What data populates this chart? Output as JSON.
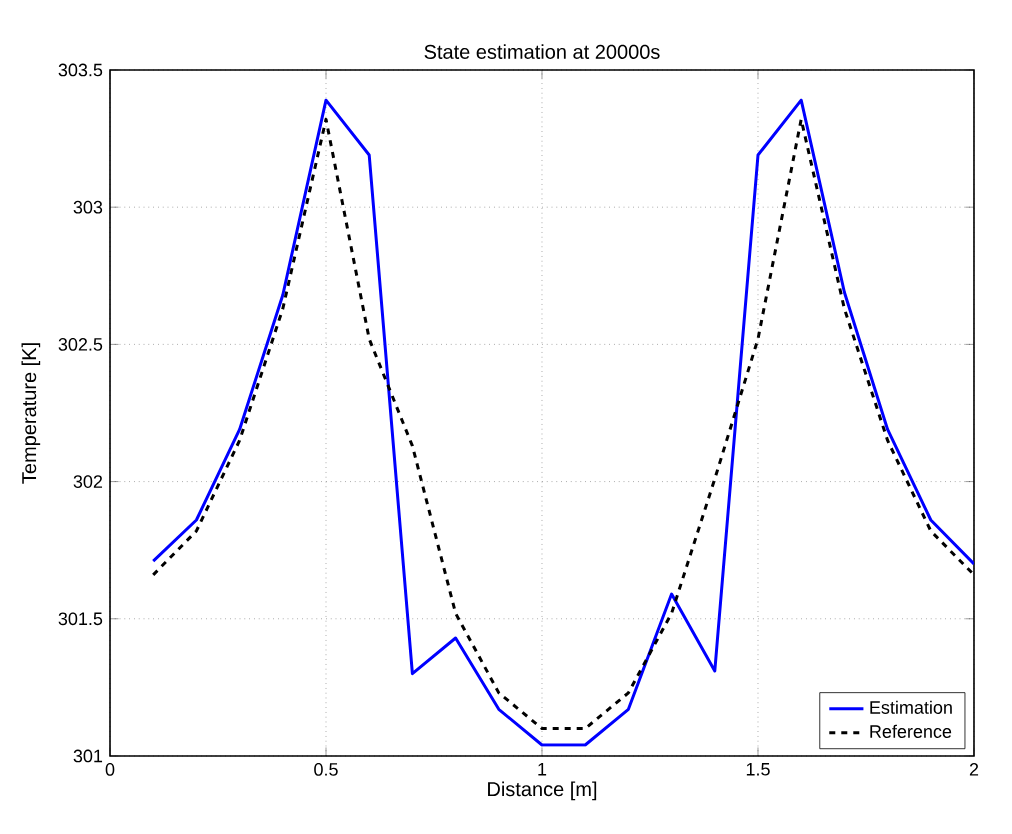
{
  "chart_data": {
    "type": "line",
    "title": "State estimation at 20000s",
    "xlabel": "Distance [m]",
    "ylabel": "Temperature [K]",
    "x": [
      0.1,
      0.2,
      0.3,
      0.4,
      0.5,
      0.6,
      0.7,
      0.8,
      0.9,
      1.0,
      1.1,
      1.2,
      1.3,
      1.4,
      1.5,
      1.6,
      1.7,
      1.8,
      1.9,
      2.0
    ],
    "series": [
      {
        "name": "Estimation",
        "color": "#0000ff",
        "line_style": "solid",
        "values": [
          301.71,
          301.86,
          302.19,
          302.68,
          303.39,
          303.19,
          301.3,
          301.43,
          301.17,
          301.04,
          301.04,
          301.17,
          301.59,
          301.31,
          303.19,
          303.39,
          302.69,
          302.19,
          301.86,
          301.7
        ]
      },
      {
        "name": "Reference",
        "color": "#000000",
        "line_style": "dashed",
        "values": [
          301.66,
          301.82,
          302.15,
          302.63,
          303.32,
          302.52,
          302.13,
          301.52,
          301.23,
          301.1,
          301.1,
          301.23,
          301.52,
          302.01,
          302.52,
          303.32,
          302.63,
          302.15,
          301.82,
          301.66
        ]
      }
    ],
    "xlim": [
      0,
      2
    ],
    "ylim": [
      301,
      303.5
    ],
    "xticks": [
      0,
      0.5,
      1,
      1.5,
      2
    ],
    "yticks": [
      301,
      301.5,
      302,
      302.5,
      303,
      303.5
    ],
    "grid": true,
    "legend": "bottom right"
  }
}
